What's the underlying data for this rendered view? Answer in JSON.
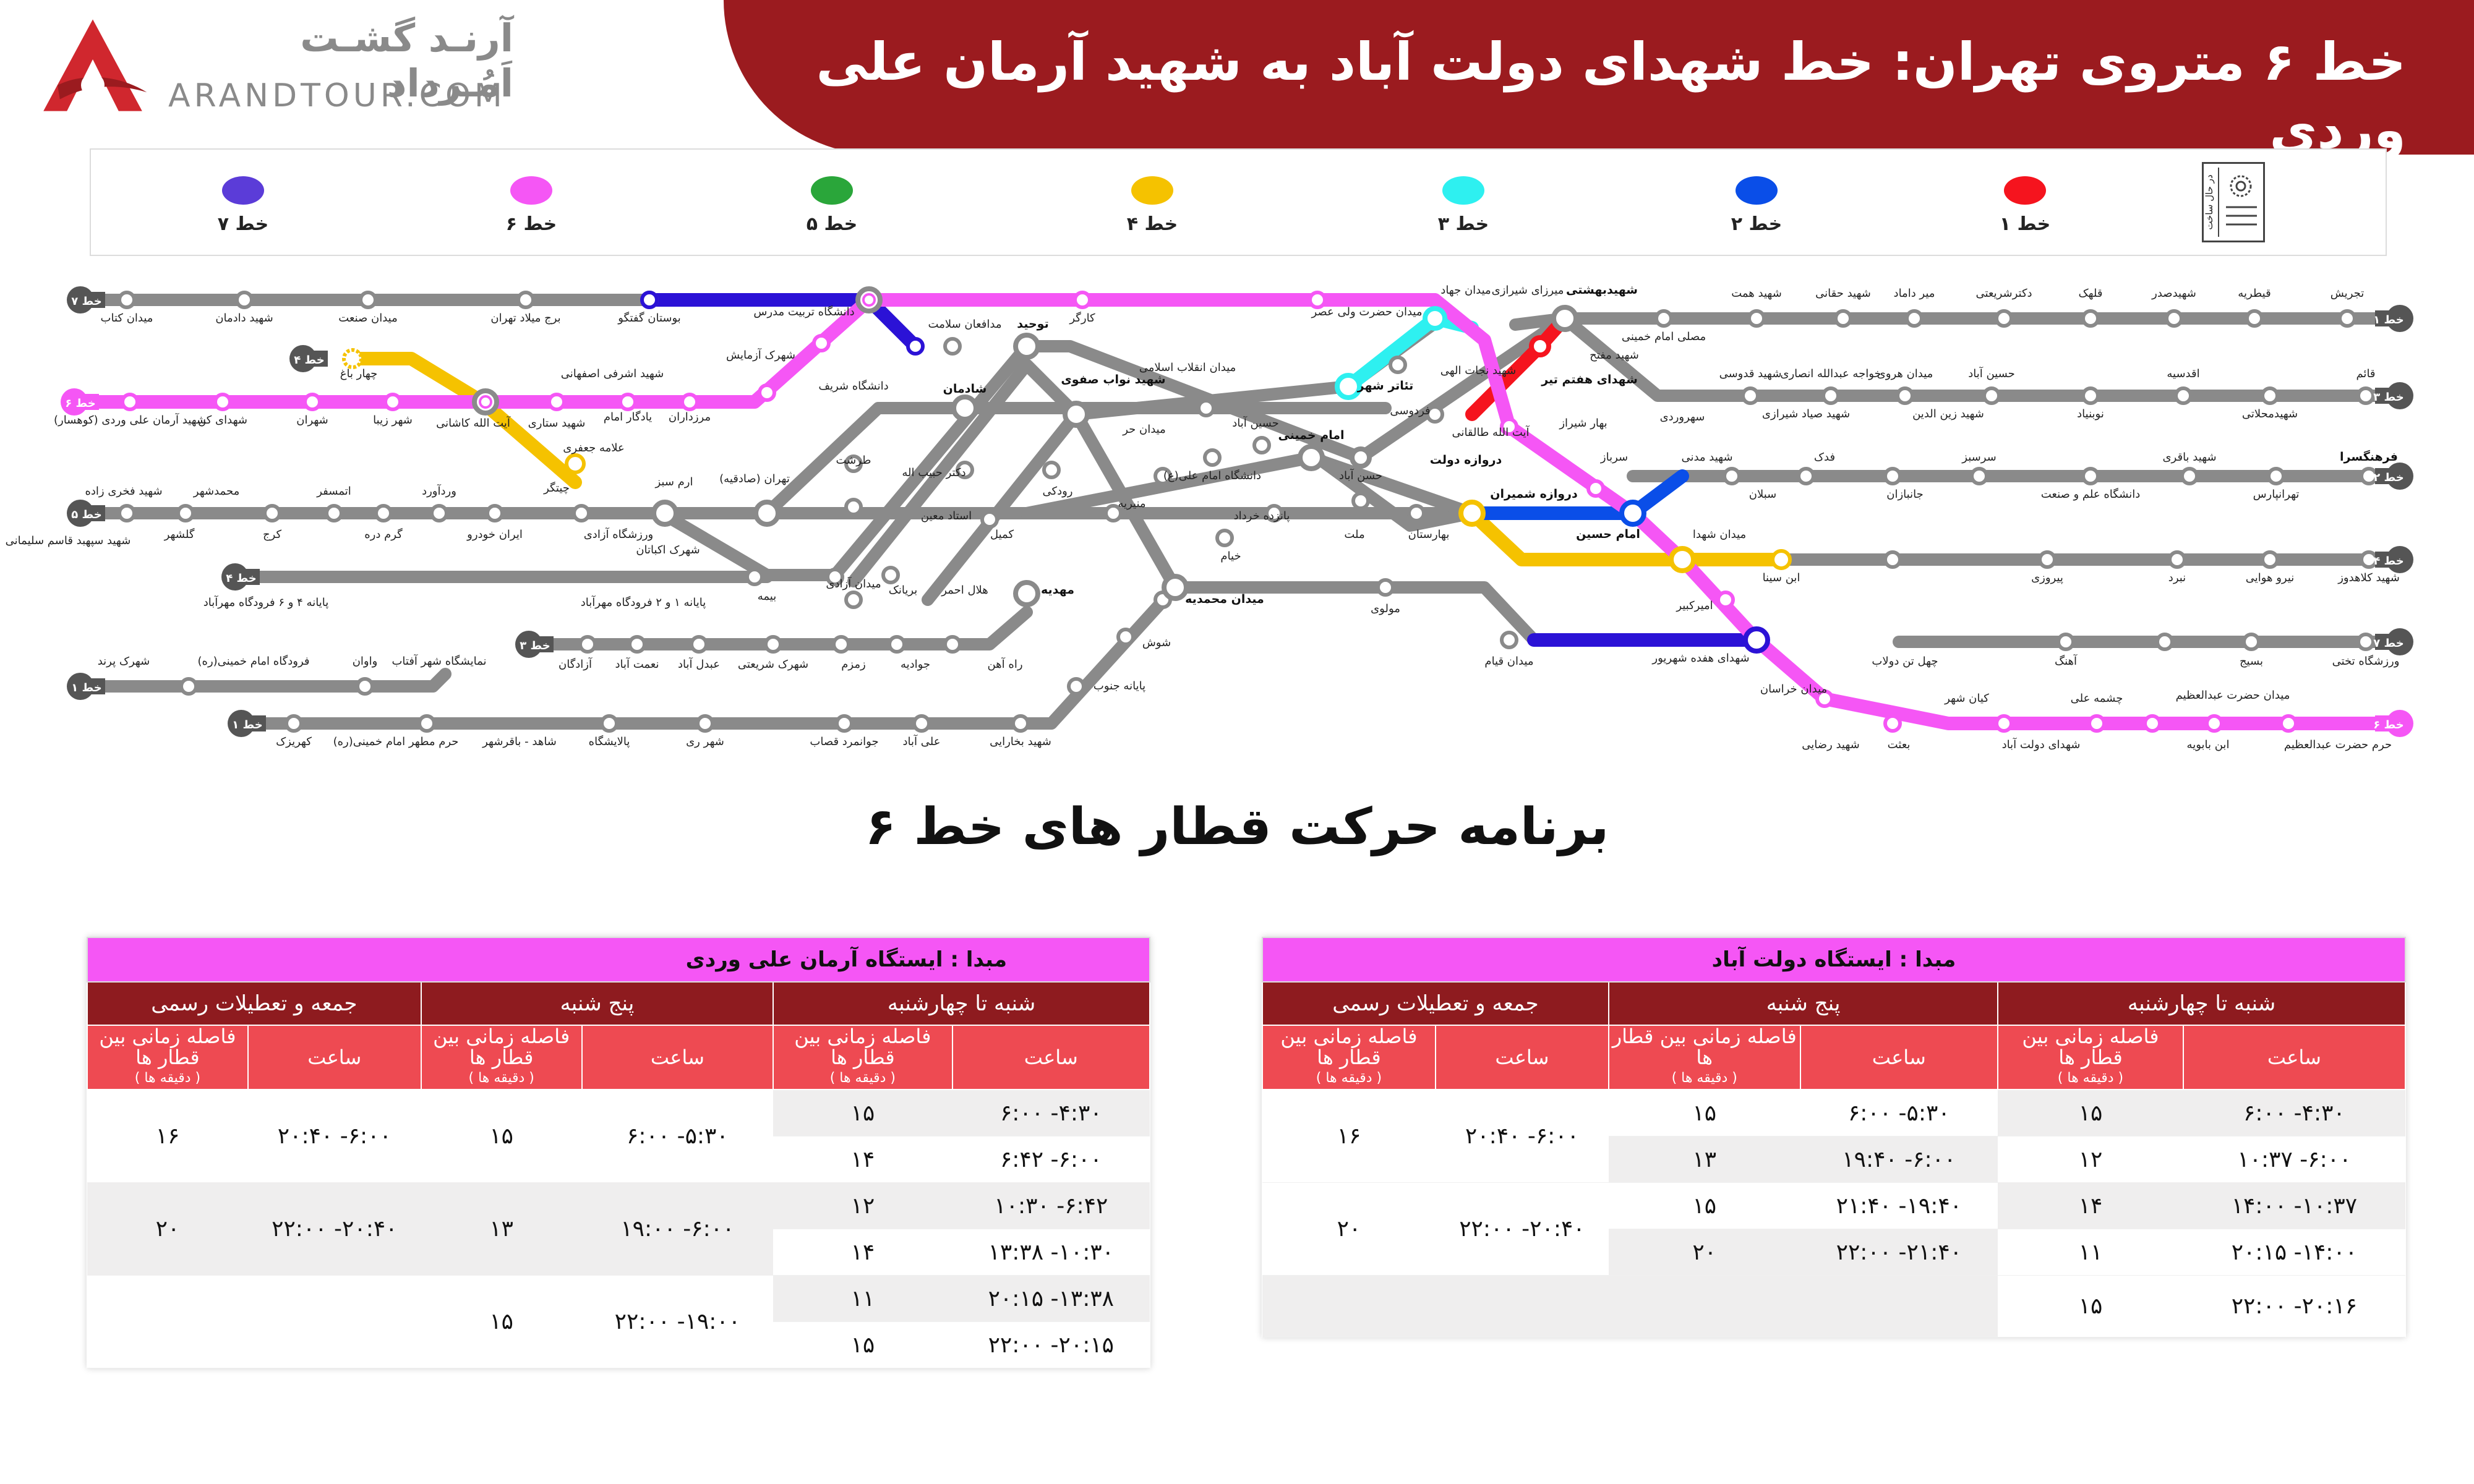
{
  "header": {
    "title": "خط ۶ متروی تهران:  خط شهدای دولت آباد به شهید آرمان علی وردی",
    "brand_fa": "آرنـد گشـت اَمُـرداد",
    "brand_en": "ARANDTOUR.COM",
    "colors": {
      "band": "#9b1b1f",
      "logo": "#d0272e"
    }
  },
  "legend": {
    "items": [
      {
        "label": "خط ۷",
        "color": "#5b3cd8"
      },
      {
        "label": "خط ۶",
        "color": "#f556f5"
      },
      {
        "label": "خط ۵",
        "color": "#2aa63a"
      },
      {
        "label": "خط ۴",
        "color": "#f5c200"
      },
      {
        "label": "خط ۳",
        "color": "#2ef0f0"
      },
      {
        "label": "خط ۲",
        "color": "#0a4ee8"
      },
      {
        "label": "خط ۱",
        "color": "#f5141e"
      }
    ],
    "soon_label": "در حال ساخت",
    "soon_icon": "construction-icon"
  },
  "map": {
    "line_badges": {
      "l1_right": "خط ۱",
      "l3_right": "خط ۳",
      "l2_right": "خط ۲",
      "l4_right": "خط ۴",
      "l7_right": "خط ۷",
      "l6_right": "خط ۶",
      "l7_left": "خط ۷",
      "l6_left": "خط ۶",
      "l5_left": "خط ۵",
      "l4_left": "خط ۴",
      "l4_top": "خط ۴",
      "l3_left": "خط ۳",
      "l1_left_a": "خط ۱",
      "l1_left_b": "خط ۱"
    },
    "stations": {
      "tajrish": "تجریش",
      "gheytarieh": "قیطریه",
      "sadr": "شهیدصدر",
      "gholhak": "قلهک",
      "shariati": "دکترشریعتی",
      "mirdamad": "میر داماد",
      "haghani": "شهید حقانی",
      "hemmat": "شهید همت",
      "mosalla": "مصلی امام خمینی",
      "beheshti": "شهیدبهشتی",
      "shirazi": "میرزای شیرازی",
      "jahad": "میدان جهاد",
      "valiasr": "میدان حضرت ولی عصر",
      "kargar": "کارگر",
      "modafean": "مدافعان سلامت",
      "tarbiat": "دانشگاه تربیت مدرس",
      "goftegoo": "بوستان گفتگو",
      "milad": "برج میلاد تهران",
      "sanat": "میدان صنعت",
      "dadman": "شهید دادمان",
      "ketab": "میدان کتاب",
      "ghaem": "قائم",
      "mahallati": "شهیدمحلاتی",
      "aghdasieh": "اقدسیه",
      "nobonyad": "نوبنیاد",
      "hosseinabad": "حسین آباد",
      "heravi": "میدان هروی",
      "zeinoddin": "شهید زین الدین",
      "ansari": "خواجه عبدالله انصاری",
      "sayad": "شهید صیاد شیرازی",
      "ghodousi": "شهید قدوسی",
      "sohrevardi": "سهروردی",
      "moffateh": "شهید مفتح",
      "haftetir": "شهدای هفتم تیر",
      "nejatollahi": "شهید نجات الهی",
      "taleghani": "آیت الله طالقانی",
      "bahar": "بهار شیراز",
      "farhangsara": "فرهنگسرا",
      "tehranpars": "تهرانپارس",
      "bagheri": "شهید باقری",
      "elmosanat": "دانشگاه علم و صنعت",
      "sarsabz": "سرسبز",
      "janbazan": "جانبازان",
      "fadak": "فدک",
      "sabalan": "سبلان",
      "madani": "شهید مدنی",
      "sarbaz": "سرباز",
      "shemiran": "دروازه شمیران",
      "baharestan": "بهارستان",
      "mellat": "ملت",
      "imamkhomeini": "امام خمینی",
      "hasanabad": "حسن آباد",
      "emamali": "دانشگاه امام علی(ع)",
      "horr": "میدان حر",
      "navvab": "شهید نواب صفوی",
      "enghelab": "میدان انقلاب اسلامی",
      "tolid": "توحید",
      "shademan": "شادمان",
      "sharif": "دانشگاه شریف",
      "azadi_sq": "میدان آزادی",
      "bimeh": "بیمه",
      "airport12": "پایانه ۱ و ۲ فرودگاه مهرآباد",
      "airport46": "پایانه ۴ و ۶ فرودگاه مهرآباد",
      "kolahdooz": "شهید کلاهدوز",
      "niroo": "نیرو هوایی",
      "nabard": "نبرد",
      "piroozi": "پیروزی",
      "ebnesina": "ابن سینا",
      "shohada": "میدان شهدا",
      "darvazedolat": "دروازه دولت",
      "ferdowsi": "فردوسی",
      "teatr": "تئاتر شهر",
      "emamhossein": "امام حسین",
      "takhti": "ورزشگاه تختی",
      "basij": "بسیج",
      "ahang": "آهنگ",
      "chehelton": "چهل تن دولاب",
      "haftdah": "شهدای هفده شهریور",
      "amirkabir": "امیرکبیر",
      "khorasan": "میدان خراسان",
      "gheyam": "میدان قیام",
      "molavi": "مولوی",
      "mohammadieh": "میدان محمدیه",
      "panzdah": "پانزده خرداد",
      "khayam": "خیام",
      "armanali": "شهید آرمان علی وردی (کوهسار)",
      "kan": "شهدای کن",
      "shahran": "شهران",
      "shahrziba": "شهر زیبا",
      "kashani": "آیت الله کاشانی",
      "sattari": "شهید ستاری",
      "yadegar": "یادگار امام",
      "marzdaran": "مرزداران",
      "azmayesh": "شهرک آزمایش",
      "ashrafi": "شهید اشرفی اصفهانی",
      "jafari": "علامه جعفری",
      "chitgar": "چیتگر",
      "armsabz": "ارم سبز",
      "ekbatan": "شهرک اکباتان",
      "azadi5": "ورزشگاه آزادی",
      "iranklodro": "ایران خودرو",
      "varavard": "وردآورد",
      "garmdareh": "گرم دره",
      "atmosfer": "اتمسفر",
      "karaj": "کرج",
      "mohammadshahr": "محمدشهر",
      "golshahr": "گلشهر",
      "sepahbod": "شهید سپهبد قاسم سلیمانی",
      "fakhri": "شهید فخری زاده",
      "tarasht": "طرشت",
      "jeihoon": "دکتر حبیب اله",
      "ostadmoein": "استاد معین",
      "rudaki": "رودکی",
      "komeyl": "کمیل",
      "helal": "هلال احمر",
      "baryanak": "بریانک",
      "mahdieh": "مهدیه",
      "rahahan": "راه آهن",
      "javadieh": "جوادیه",
      "zamzam": "زمزم",
      "shariatishahrak": "شهرک شریعتی",
      "abdolabad": "عبدل آباد",
      "nematabad": "نعمت آباد",
      "azadegan": "آزادگان",
      "monirieh": "منیریه",
      "shoush": "شوش",
      "payanejonoob": "پایانه جنوب",
      "bokharaei": "شهید بخارایی",
      "aliabad": "علی آباد",
      "javanmard": "جوانمرد قصاب",
      "shahrerey": "شهر ری",
      "palayeshgah": "پالایشگاه",
      "shahed": "شاهد - باقرشهر",
      "haram": "حرم مطهر امام خمینی(ره)",
      "kahrizak": "کهریزک",
      "namayeshgah": "نمایشگاه شهر آفتاب",
      "vavan": "واوان",
      "imamairport": "فرودگاه امام خمینی(ره)",
      "parand": "شهرک پرند",
      "rezaei": "شهید رضایی",
      "besat": "بعثت",
      "kianshahr": "کیان شهر",
      "dolatabad": "شهدای دولت آباد",
      "cheshmeali": "چشمه علی",
      "ebnebabooyeh": "ابن بابویه",
      "abdolazim": "میدان حضرت عبدالعظیم",
      "haramabdolazim": "حرم حضرت عبدالعظیم",
      "chaharbagh": "چهار باغ",
      "tehransadeghieh": "تهران (صادقیه)",
      "imam_sq": "میدان امام خمینی"
    }
  },
  "schedule": {
    "title": "برنامه حرکت قطار های  خط ۶",
    "col_weekday": "شنبه تا چهارشنبه",
    "col_thursday": "پنج شنبه",
    "col_friday": "جمعه و تعطیلات رسمی",
    "sub_time": "ساعت",
    "sub_headway": "فاصله زمانی بین قطار ها",
    "sub_headway_unit": "( دقیقه ها )",
    "right_table": {
      "origin": "مبدا : ایستگاه دولت آباد",
      "weekday": [
        [
          "۴:۳۰- ۶:۰۰",
          "۱۵"
        ],
        [
          "۶:۰۰- ۱۰:۳۷",
          "۱۲"
        ],
        [
          "۱۰:۳۷- ۱۴:۰۰",
          "۱۴"
        ],
        [
          "۱۴:۰۰- ۲۰:۱۵",
          "۱۱"
        ],
        [
          "۲۰:۱۶- ۲۲:۰۰",
          "۱۵"
        ]
      ],
      "thursday": [
        [
          "۵:۳۰- ۶:۰۰",
          "۱۵"
        ],
        [
          "۶:۰۰- ۱۹:۴۰",
          "۱۳"
        ],
        [
          "۱۹:۴۰- ۲۱:۴۰",
          "۱۵"
        ],
        [
          "۲۱:۴۰- ۲۲:۰۰",
          "۲۰"
        ]
      ],
      "friday": [
        [
          "۶:۰۰- ۲۰:۴۰",
          "۱۶"
        ],
        [
          "۲۰:۴۰- ۲۲:۰۰",
          "۲۰"
        ]
      ]
    },
    "left_table": {
      "origin": "مبدا : ایستگاه آرمان علی وردی",
      "weekday": [
        [
          "۴:۳۰- ۶:۰۰",
          "۱۵"
        ],
        [
          "۶:۰۰- ۶:۴۲",
          "۱۴"
        ],
        [
          "۶:۴۲- ۱۰:۳۰",
          "۱۲"
        ],
        [
          "۱۰:۳۰- ۱۳:۳۸",
          "۱۴"
        ],
        [
          "۱۳:۳۸- ۲۰:۱۵",
          "۱۱"
        ],
        [
          "۲۰:۱۵- ۲۲:۰۰",
          "۱۵"
        ]
      ],
      "thursday": [
        [
          "۵:۳۰- ۶:۰۰",
          "۱۵"
        ],
        [
          "۶:۰۰- ۱۹:۰۰",
          "۱۳"
        ],
        [
          "۱۹:۰۰- ۲۲:۰۰",
          "۱۵"
        ]
      ],
      "friday": [
        [
          "۶:۰۰- ۲۰:۴۰",
          "۱۶"
        ],
        [
          "۲۰:۴۰- ۲۲:۰۰",
          "۲۰"
        ]
      ]
    }
  }
}
